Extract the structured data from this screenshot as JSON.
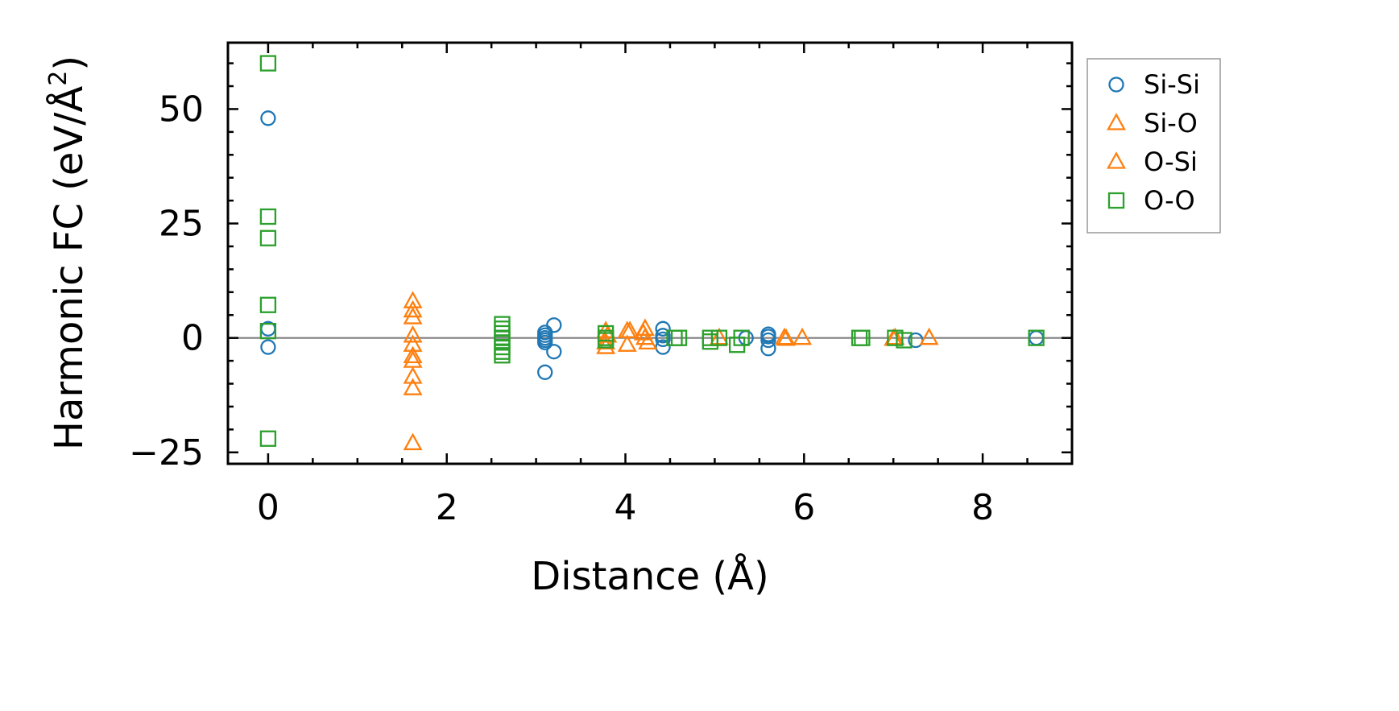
{
  "chart_data": {
    "type": "scatter",
    "xlabel": "Distance (Å)",
    "ylabel_main": "Harmonic FC (eV/Å",
    "ylabel_sup": "2",
    "ylabel_close": ")",
    "xlim": [
      -0.45,
      9.0
    ],
    "ylim": [
      -27.5,
      64.5
    ],
    "xticks": [
      0,
      2,
      4,
      6,
      8
    ],
    "xtick_labels": [
      "0",
      "2",
      "4",
      "6",
      "8"
    ],
    "yticks": [
      -25,
      0,
      25,
      50
    ],
    "ytick_labels": [
      "−25",
      "0",
      "25",
      "50"
    ],
    "zero_line": 0,
    "legend_position": "outside-right",
    "series": [
      {
        "name": "Si-Si",
        "marker": "circle",
        "color": "#1f77b4",
        "points": [
          [
            0,
            48
          ],
          [
            0,
            2
          ],
          [
            0,
            -2
          ],
          [
            3.1,
            1.2
          ],
          [
            3.1,
            0.6
          ],
          [
            3.1,
            0
          ],
          [
            3.1,
            -0.5
          ],
          [
            3.1,
            -1
          ],
          [
            3.1,
            -7.5
          ],
          [
            3.2,
            2.8
          ],
          [
            3.2,
            -3
          ],
          [
            4.42,
            2
          ],
          [
            4.42,
            0.5
          ],
          [
            4.42,
            -0.3
          ],
          [
            4.42,
            -2
          ],
          [
            5.35,
            0
          ],
          [
            5.6,
            0.8
          ],
          [
            5.6,
            0.3
          ],
          [
            5.6,
            -0.5
          ],
          [
            5.6,
            -2.3
          ],
          [
            7.25,
            -0.5
          ],
          [
            8.6,
            0
          ]
        ]
      },
      {
        "name": "Si-O",
        "marker": "triangle",
        "color": "#ff7f0e",
        "points": [
          [
            1.62,
            8
          ],
          [
            1.62,
            4.5
          ],
          [
            1.62,
            0.5
          ],
          [
            1.62,
            -1.5
          ],
          [
            1.62,
            -4
          ],
          [
            1.62,
            -8.5
          ],
          [
            1.62,
            -11
          ],
          [
            1.62,
            -23
          ],
          [
            3.78,
            1.5
          ],
          [
            3.78,
            -1
          ],
          [
            3.78,
            -2
          ],
          [
            4.02,
            1.5
          ],
          [
            4.02,
            -1.5
          ],
          [
            4.05,
            1.5
          ],
          [
            4.22,
            2
          ],
          [
            4.22,
            0
          ],
          [
            4.25,
            -1
          ],
          [
            5.05,
            0
          ],
          [
            5.8,
            -0.2
          ],
          [
            5.98,
            0
          ],
          [
            7.0,
            -0.2
          ],
          [
            7.4,
            0
          ]
        ]
      },
      {
        "name": "O-Si",
        "marker": "triangle",
        "color": "#ff7f0e",
        "points": [
          [
            1.62,
            6
          ],
          [
            1.62,
            -5
          ],
          [
            3.8,
            0.5
          ],
          [
            4.2,
            1
          ],
          [
            5.78,
            0
          ],
          [
            7.02,
            0
          ]
        ]
      },
      {
        "name": "O-O",
        "marker": "square",
        "color": "#2ca02c",
        "points": [
          [
            0,
            60
          ],
          [
            0,
            26.5
          ],
          [
            0,
            21.8
          ],
          [
            0,
            7.2
          ],
          [
            0,
            1.5
          ],
          [
            0,
            -22
          ],
          [
            2.62,
            3
          ],
          [
            2.62,
            2
          ],
          [
            2.62,
            1
          ],
          [
            2.62,
            0
          ],
          [
            2.62,
            -1
          ],
          [
            2.62,
            -2
          ],
          [
            2.62,
            -3
          ],
          [
            2.62,
            -3.8
          ],
          [
            3.78,
            1
          ],
          [
            3.78,
            0
          ],
          [
            3.78,
            -0.5
          ],
          [
            4.55,
            0
          ],
          [
            4.6,
            0
          ],
          [
            4.95,
            0
          ],
          [
            4.95,
            -0.8
          ],
          [
            5.05,
            0
          ],
          [
            5.25,
            -1.5
          ],
          [
            5.3,
            0
          ],
          [
            6.62,
            0
          ],
          [
            6.65,
            0
          ],
          [
            7.02,
            0
          ],
          [
            7.12,
            -0.5
          ],
          [
            8.6,
            0
          ]
        ]
      }
    ]
  }
}
